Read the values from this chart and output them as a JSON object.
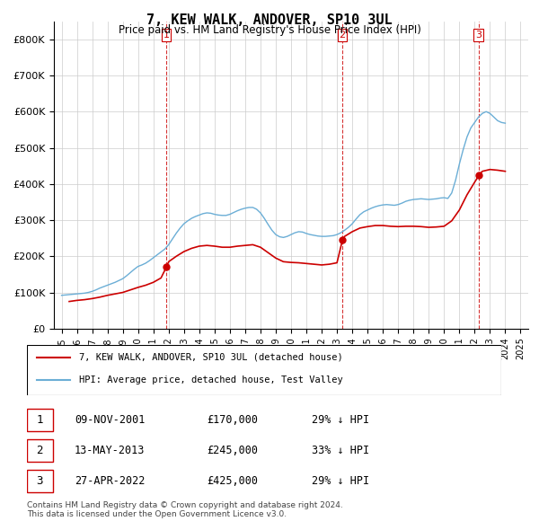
{
  "title": "7, KEW WALK, ANDOVER, SP10 3UL",
  "subtitle": "Price paid vs. HM Land Registry's House Price Index (HPI)",
  "xlabel": "",
  "ylabel": "",
  "ylim": [
    0,
    850000
  ],
  "yticks": [
    0,
    100000,
    200000,
    300000,
    400000,
    500000,
    600000,
    700000,
    800000
  ],
  "ytick_labels": [
    "£0",
    "£100K",
    "£200K",
    "£300K",
    "£400K",
    "£500K",
    "£600K",
    "£700K",
    "£800K"
  ],
  "hpi_color": "#6baed6",
  "price_color": "#cc0000",
  "vline_color": "#cc0000",
  "grid_color": "#cccccc",
  "background_color": "#ffffff",
  "sale_dates": [
    "2001-11-09",
    "2013-05-13",
    "2022-04-27"
  ],
  "sale_prices": [
    170000,
    245000,
    425000
  ],
  "legend_label_price": "7, KEW WALK, ANDOVER, SP10 3UL (detached house)",
  "legend_label_hpi": "HPI: Average price, detached house, Test Valley",
  "table_rows": [
    {
      "num": "1",
      "date": "09-NOV-2001",
      "price": "£170,000",
      "hpi": "29% ↓ HPI"
    },
    {
      "num": "2",
      "date": "13-MAY-2013",
      "price": "£245,000",
      "hpi": "33% ↓ HPI"
    },
    {
      "num": "3",
      "date": "27-APR-2022",
      "price": "£425,000",
      "hpi": "29% ↓ HPI"
    }
  ],
  "footnote": "Contains HM Land Registry data © Crown copyright and database right 2024.\nThis data is licensed under the Open Government Licence v3.0.",
  "hpi_data_x": [
    1995.0,
    1995.25,
    1995.5,
    1995.75,
    1996.0,
    1996.25,
    1996.5,
    1996.75,
    1997.0,
    1997.25,
    1997.5,
    1997.75,
    1998.0,
    1998.25,
    1998.5,
    1998.75,
    1999.0,
    1999.25,
    1999.5,
    1999.75,
    2000.0,
    2000.25,
    2000.5,
    2000.75,
    2001.0,
    2001.25,
    2001.5,
    2001.75,
    2002.0,
    2002.25,
    2002.5,
    2002.75,
    2003.0,
    2003.25,
    2003.5,
    2003.75,
    2004.0,
    2004.25,
    2004.5,
    2004.75,
    2005.0,
    2005.25,
    2005.5,
    2005.75,
    2006.0,
    2006.25,
    2006.5,
    2006.75,
    2007.0,
    2007.25,
    2007.5,
    2007.75,
    2008.0,
    2008.25,
    2008.5,
    2008.75,
    2009.0,
    2009.25,
    2009.5,
    2009.75,
    2010.0,
    2010.25,
    2010.5,
    2010.75,
    2011.0,
    2011.25,
    2011.5,
    2011.75,
    2012.0,
    2012.25,
    2012.5,
    2012.75,
    2013.0,
    2013.25,
    2013.5,
    2013.75,
    2014.0,
    2014.25,
    2014.5,
    2014.75,
    2015.0,
    2015.25,
    2015.5,
    2015.75,
    2016.0,
    2016.25,
    2016.5,
    2016.75,
    2017.0,
    2017.25,
    2017.5,
    2017.75,
    2018.0,
    2018.25,
    2018.5,
    2018.75,
    2019.0,
    2019.25,
    2019.5,
    2019.75,
    2020.0,
    2020.25,
    2020.5,
    2020.75,
    2021.0,
    2021.25,
    2021.5,
    2021.75,
    2022.0,
    2022.25,
    2022.5,
    2022.75,
    2023.0,
    2023.25,
    2023.5,
    2023.75,
    2024.0
  ],
  "hpi_data_y": [
    92000,
    93000,
    94000,
    95000,
    96000,
    97000,
    98000,
    100000,
    103000,
    107000,
    112000,
    116000,
    120000,
    124000,
    128000,
    133000,
    138000,
    146000,
    155000,
    164000,
    172000,
    176000,
    181000,
    188000,
    196000,
    204000,
    212000,
    220000,
    232000,
    248000,
    264000,
    278000,
    290000,
    298000,
    305000,
    310000,
    314000,
    318000,
    320000,
    319000,
    316000,
    314000,
    313000,
    313000,
    316000,
    321000,
    326000,
    330000,
    333000,
    335000,
    335000,
    330000,
    320000,
    305000,
    288000,
    272000,
    260000,
    254000,
    252000,
    255000,
    260000,
    265000,
    268000,
    267000,
    263000,
    260000,
    258000,
    256000,
    255000,
    255000,
    256000,
    257000,
    260000,
    265000,
    272000,
    280000,
    290000,
    303000,
    315000,
    323000,
    328000,
    333000,
    337000,
    340000,
    342000,
    343000,
    342000,
    341000,
    343000,
    347000,
    352000,
    355000,
    357000,
    358000,
    359000,
    358000,
    357000,
    358000,
    359000,
    361000,
    362000,
    360000,
    375000,
    410000,
    455000,
    495000,
    530000,
    555000,
    570000,
    585000,
    595000,
    600000,
    595000,
    585000,
    575000,
    570000,
    568000
  ],
  "price_data_x": [
    1995.5,
    1996.0,
    1996.5,
    1997.0,
    1997.5,
    1998.0,
    1998.5,
    1999.0,
    1999.5,
    2000.0,
    2000.5,
    2001.0,
    2001.5,
    2001.85,
    2002.0,
    2002.5,
    2003.0,
    2003.5,
    2004.0,
    2004.5,
    2005.0,
    2005.5,
    2006.0,
    2006.5,
    2007.0,
    2007.5,
    2008.0,
    2008.5,
    2009.0,
    2009.5,
    2010.0,
    2010.5,
    2011.0,
    2011.5,
    2012.0,
    2012.5,
    2013.0,
    2013.36,
    2013.5,
    2014.0,
    2014.5,
    2015.0,
    2015.5,
    2016.0,
    2016.5,
    2017.0,
    2017.5,
    2018.0,
    2018.5,
    2019.0,
    2019.5,
    2020.0,
    2020.5,
    2021.0,
    2021.5,
    2022.0,
    2022.3,
    2022.5,
    2023.0,
    2023.5,
    2024.0
  ],
  "price_data_y": [
    75000,
    78000,
    80000,
    83000,
    87000,
    92000,
    96000,
    100000,
    107000,
    114000,
    120000,
    128000,
    140000,
    170000,
    185000,
    200000,
    213000,
    222000,
    228000,
    230000,
    228000,
    225000,
    225000,
    228000,
    230000,
    232000,
    225000,
    210000,
    195000,
    185000,
    183000,
    182000,
    180000,
    178000,
    176000,
    178000,
    182000,
    245000,
    255000,
    268000,
    278000,
    282000,
    285000,
    285000,
    283000,
    282000,
    283000,
    283000,
    282000,
    280000,
    281000,
    283000,
    298000,
    328000,
    370000,
    405000,
    425000,
    435000,
    440000,
    438000,
    435000
  ],
  "xlim": [
    1994.5,
    2025.5
  ],
  "xticks": [
    1995,
    1996,
    1997,
    1998,
    1999,
    2000,
    2001,
    2002,
    2003,
    2004,
    2005,
    2006,
    2007,
    2008,
    2009,
    2010,
    2011,
    2012,
    2013,
    2014,
    2015,
    2016,
    2017,
    2018,
    2019,
    2020,
    2021,
    2022,
    2023,
    2024,
    2025
  ]
}
